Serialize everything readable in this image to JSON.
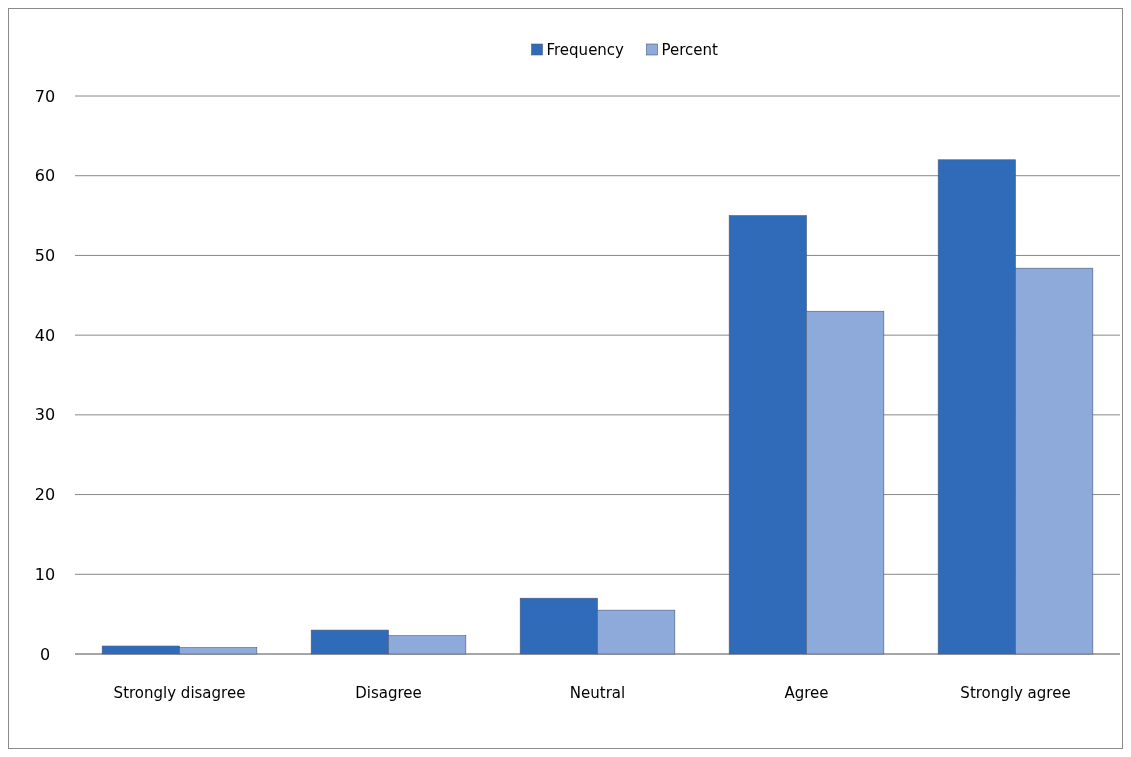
{
  "chart_data": {
    "type": "bar",
    "categories": [
      "Strongly disagree",
      "Disagree",
      "Neutral",
      "Agree",
      "Strongly agree"
    ],
    "series": [
      {
        "name": "Frequency",
        "color": "#2f6bb8",
        "values": [
          1,
          3,
          7,
          55,
          62
        ]
      },
      {
        "name": "Percent",
        "color": "#8eaadb",
        "values": [
          0.8,
          2.3,
          5.5,
          43.0,
          48.4
        ]
      }
    ],
    "ylim": [
      0,
      70
    ],
    "yticks": [
      0,
      10,
      20,
      30,
      40,
      50,
      60,
      70
    ],
    "grid": "y",
    "legend": "top"
  }
}
